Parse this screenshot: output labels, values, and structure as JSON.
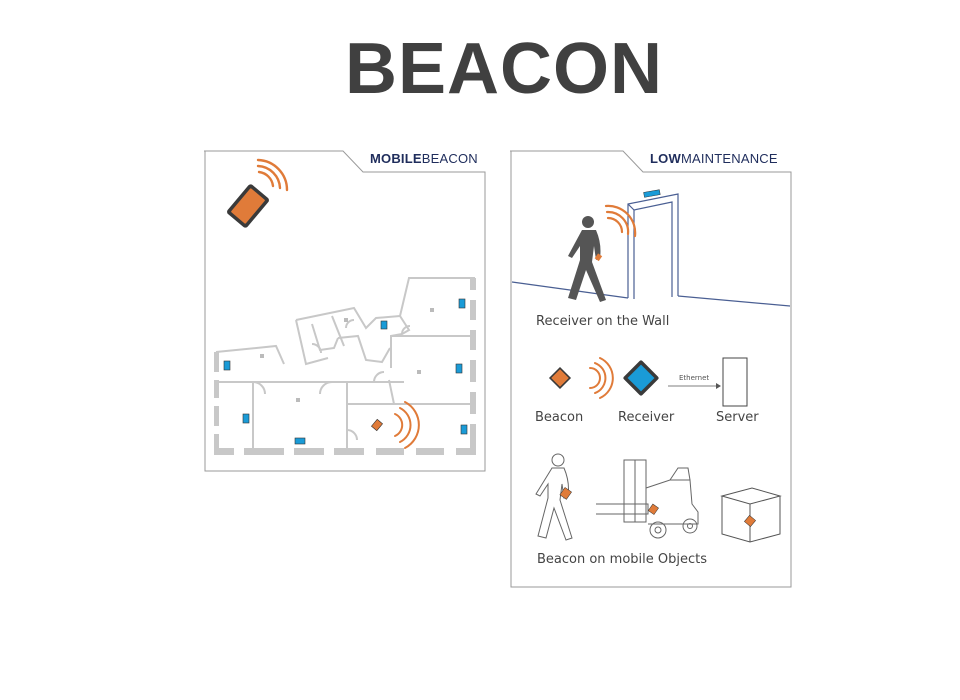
{
  "title": "BEACON",
  "colors": {
    "title": "#404040",
    "tab_text": "#1f2d5c",
    "beacon_orange": "#e07b39",
    "receiver_blue": "#1a9bd7",
    "device_outline": "#3a3a3a",
    "floorplan_walls": "#c8c8c8",
    "panel_border": "#9a9a9a",
    "wall_line": "#4a5f93"
  },
  "left_panel": {
    "tab_bold": "MOBILE",
    "tab_light": "BEACON"
  },
  "right_panel": {
    "tab_bold": "LOW",
    "tab_light": "MAINTENANCE",
    "receiver_on_wall_label": "Receiver on the Wall",
    "ethernet_label": "Ethernet",
    "beacon_label": "Beacon",
    "receiver_label": "Receiver",
    "server_label": "Server",
    "mobile_objects_label": "Beacon on mobile Objects"
  },
  "icons": [
    "signal-waves-icon",
    "tablet-icon",
    "walking-person-icon",
    "door-icon",
    "server-icon",
    "forklift-icon",
    "box-icon"
  ]
}
